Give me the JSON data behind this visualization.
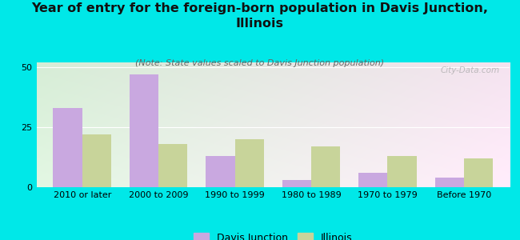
{
  "categories": [
    "2010 or later",
    "2000 to 2009",
    "1990 to 1999",
    "1980 to 1989",
    "1970 to 1979",
    "Before 1970"
  ],
  "davis_junction": [
    33,
    47,
    13,
    3,
    6,
    4
  ],
  "illinois": [
    22,
    18,
    20,
    17,
    13,
    12
  ],
  "davis_color": "#c9a8e0",
  "illinois_color": "#c8d49a",
  "title": "Year of entry for the foreign-born population in Davis Junction,\nIllinois",
  "subtitle": "(Note: State values scaled to Davis Junction population)",
  "ylim": [
    0,
    52
  ],
  "yticks": [
    0,
    25,
    50
  ],
  "background_color": "#00e8e8",
  "bar_width": 0.38,
  "legend_labels": [
    "Davis Junction",
    "Illinois"
  ],
  "watermark": "City-Data.com",
  "title_fontsize": 11.5,
  "subtitle_fontsize": 8,
  "tick_fontsize": 8,
  "legend_fontsize": 9
}
